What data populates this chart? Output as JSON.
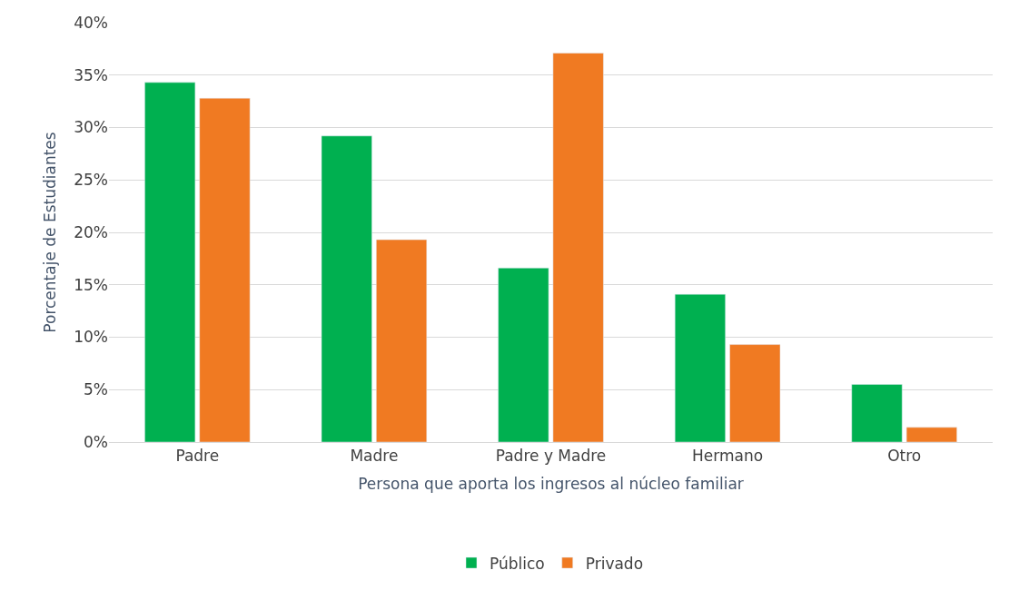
{
  "chart_data": {
    "type": "bar",
    "xlabel": "Persona que aporta los ingresos al núcleo familiar",
    "ylabel": "Porcentaje de Estudiantes",
    "categories": [
      "Padre",
      "Madre",
      "Padre y Madre",
      "Hermano",
      "Otro"
    ],
    "series": [
      {
        "name": "Público",
        "color": "#00b050",
        "values": [
          34.3,
          29.2,
          16.6,
          14.1,
          5.5
        ]
      },
      {
        "name": "Privado",
        "color": "#f07a22",
        "values": [
          32.8,
          19.3,
          37.1,
          9.3,
          1.4
        ]
      }
    ],
    "ylim": [
      0,
      40
    ],
    "yticks": [
      {
        "value": 0,
        "label": "0%"
      },
      {
        "value": 5,
        "label": "5%"
      },
      {
        "value": 10,
        "label": "10%"
      },
      {
        "value": 15,
        "label": "15%"
      },
      {
        "value": 20,
        "label": "20%"
      },
      {
        "value": 25,
        "label": "25%"
      },
      {
        "value": 30,
        "label": "30%"
      },
      {
        "value": 35,
        "label": "35%"
      },
      {
        "value": 40,
        "label": "40%"
      }
    ],
    "grid": "y",
    "legend": "bottom"
  }
}
